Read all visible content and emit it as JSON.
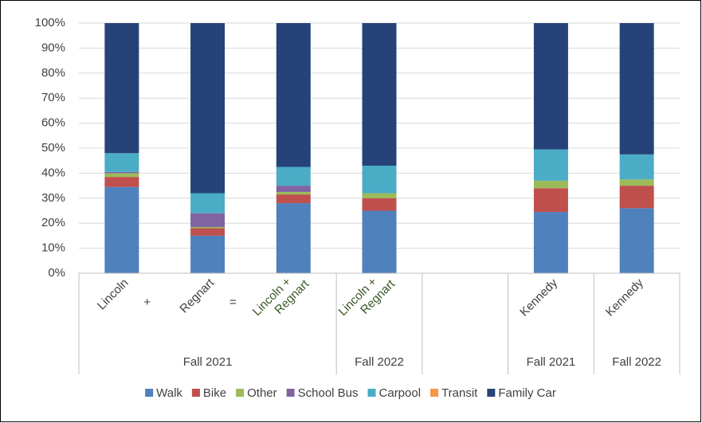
{
  "chart_data": {
    "type": "stacked_bar",
    "categories": [
      [
        "Lincoln"
      ],
      [
        "Regnart"
      ],
      [
        "Lincoln +",
        "Regnart"
      ],
      [
        "Lincoln +",
        "Regnart"
      ],
      null,
      [
        "Kennedy"
      ],
      [
        "Kennedy"
      ]
    ],
    "category_label_colors": [
      "#404040",
      "#404040",
      "#375623",
      "#375623",
      null,
      "#404040",
      "#404040"
    ],
    "operators": [
      "+",
      "="
    ],
    "groups": [
      {
        "label": "Fall 2021",
        "size": 3
      },
      {
        "label": "Fall 2022",
        "size": 1
      },
      {
        "label": null,
        "size": 1
      },
      {
        "label": "Fall 2021",
        "size": 1
      },
      {
        "label": "Fall 2022",
        "size": 1
      }
    ],
    "series": [
      {
        "name": "Walk",
        "color": "#4f81bd",
        "values": [
          34.5,
          15,
          28,
          25,
          null,
          24.5,
          26
        ]
      },
      {
        "name": "Bike",
        "color": "#c0504d",
        "values": [
          4,
          3,
          3.5,
          5,
          null,
          9.5,
          9
        ]
      },
      {
        "name": "Other",
        "color": "#9bbb59",
        "values": [
          1.5,
          0.5,
          1,
          2,
          null,
          3,
          2.5
        ]
      },
      {
        "name": "School Bus",
        "color": "#8064a2",
        "values": [
          0.5,
          5.5,
          2.5,
          0,
          null,
          0,
          0
        ]
      },
      {
        "name": "Carpool",
        "color": "#4bacc6",
        "values": [
          7.5,
          8,
          7.5,
          11,
          null,
          12.5,
          10
        ]
      },
      {
        "name": "Transit",
        "color": "#f79646",
        "values": [
          0,
          0,
          0,
          0,
          null,
          0,
          0
        ]
      },
      {
        "name": "Family Car",
        "color": "#254378",
        "values": [
          52,
          68,
          57.5,
          57,
          null,
          50.5,
          52.5
        ]
      }
    ],
    "ylim": [
      0,
      100
    ],
    "yticks": [
      {
        "value": 0,
        "label": "0%"
      },
      {
        "value": 10,
        "label": "10%"
      },
      {
        "value": 20,
        "label": "20%"
      },
      {
        "value": 30,
        "label": "30%"
      },
      {
        "value": 40,
        "label": "40%"
      },
      {
        "value": 50,
        "label": "50%"
      },
      {
        "value": 60,
        "label": "60%"
      },
      {
        "value": 70,
        "label": "70%"
      },
      {
        "value": 80,
        "label": "80%"
      },
      {
        "value": 90,
        "label": "90%"
      },
      {
        "value": 100,
        "label": "100%"
      }
    ],
    "grid": true,
    "legend": "bottom"
  }
}
